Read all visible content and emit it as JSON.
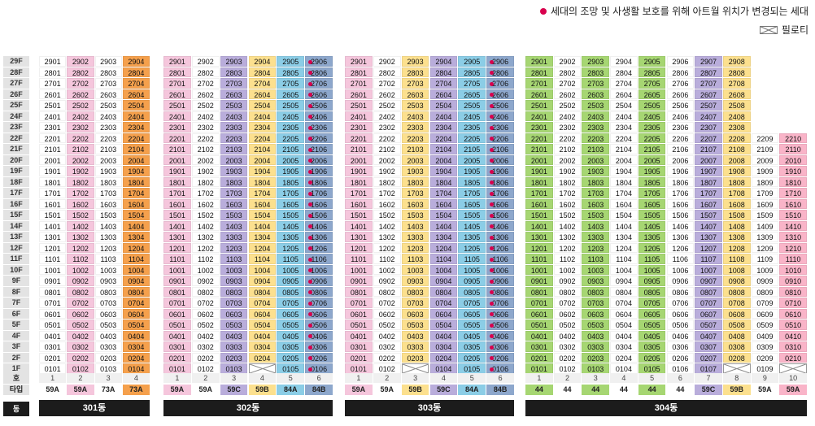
{
  "legend": {
    "dot_text": "세대의 조망 및 사생활 보호를 위해 아트월 위치가 변경되는 세대",
    "piloti_text": "필로티"
  },
  "labels": {
    "ho": "호",
    "type": "타입",
    "dong": "동"
  },
  "floors": [
    "29F",
    "28F",
    "27F",
    "26F",
    "25F",
    "24F",
    "23F",
    "22F",
    "21F",
    "20F",
    "19F",
    "18F",
    "17F",
    "16F",
    "15F",
    "14F",
    "13F",
    "12F",
    "11F",
    "10F",
    "9F",
    "8F",
    "7F",
    "6F",
    "5F",
    "4F",
    "3F",
    "2F",
    "1F"
  ],
  "colors": {
    "w": "#ffffff",
    "p": "#f5c6dc",
    "o": "#f5a04c",
    "v": "#b9addb",
    "y": "#fce08e",
    "b": "#8bcde6",
    "s": "#8da7cc",
    "g": "#a6d672",
    "r": "#f9b4c8",
    "dot": "#d8004d"
  },
  "buildings": [
    {
      "name": "301동",
      "columns": [
        {
          "ho": "1",
          "type": "59A",
          "color": "w",
          "dot": false,
          "top": 29,
          "piloti": []
        },
        {
          "ho": "2",
          "type": "59A",
          "color": "p",
          "dot": false,
          "top": 29,
          "piloti": []
        },
        {
          "ho": "3",
          "type": "73A",
          "color": "w",
          "dot": false,
          "top": 29,
          "piloti": []
        },
        {
          "ho": "4",
          "type": "73A",
          "color": "o",
          "dot": false,
          "top": 29,
          "piloti": []
        }
      ]
    },
    {
      "name": "302동",
      "columns": [
        {
          "ho": "1",
          "type": "59A",
          "color": "p",
          "dot": false,
          "top": 29,
          "piloti": []
        },
        {
          "ho": "2",
          "type": "59A",
          "color": "w",
          "dot": false,
          "top": 29,
          "piloti": []
        },
        {
          "ho": "3",
          "type": "59C",
          "color": "v",
          "dot": false,
          "top": 29,
          "piloti": []
        },
        {
          "ho": "4",
          "type": "59B",
          "color": "y",
          "dot": false,
          "top": 29,
          "piloti": [
            1
          ]
        },
        {
          "ho": "5",
          "type": "84A",
          "color": "b",
          "dot": false,
          "top": 29,
          "piloti": []
        },
        {
          "ho": "6",
          "type": "84B",
          "color": "s",
          "dot": true,
          "top": 29,
          "piloti": []
        }
      ]
    },
    {
      "name": "303동",
      "columns": [
        {
          "ho": "1",
          "type": "59A",
          "color": "p",
          "dot": false,
          "top": 29,
          "piloti": []
        },
        {
          "ho": "2",
          "type": "59A",
          "color": "w",
          "dot": false,
          "top": 29,
          "piloti": []
        },
        {
          "ho": "3",
          "type": "59B",
          "color": "y",
          "dot": false,
          "top": 29,
          "piloti": [
            1
          ]
        },
        {
          "ho": "4",
          "type": "59C",
          "color": "v",
          "dot": false,
          "top": 29,
          "piloti": []
        },
        {
          "ho": "5",
          "type": "84A",
          "color": "b",
          "dot": false,
          "top": 29,
          "piloti": []
        },
        {
          "ho": "6",
          "type": "84B",
          "color": "s",
          "dot": true,
          "top": 29,
          "piloti": []
        }
      ]
    },
    {
      "name": "304동",
      "columns": [
        {
          "ho": "1",
          "type": "44",
          "color": "g",
          "dot": false,
          "top": 29,
          "piloti": []
        },
        {
          "ho": "2",
          "type": "44",
          "color": "w",
          "dot": false,
          "top": 29,
          "piloti": []
        },
        {
          "ho": "3",
          "type": "44",
          "color": "g",
          "dot": false,
          "top": 29,
          "piloti": []
        },
        {
          "ho": "4",
          "type": "44",
          "color": "w",
          "dot": false,
          "top": 29,
          "piloti": []
        },
        {
          "ho": "5",
          "type": "44",
          "color": "g",
          "dot": false,
          "top": 29,
          "piloti": []
        },
        {
          "ho": "6",
          "type": "44",
          "color": "w",
          "dot": false,
          "top": 29,
          "piloti": []
        },
        {
          "ho": "7",
          "type": "59C",
          "color": "v",
          "dot": false,
          "top": 29,
          "piloti": []
        },
        {
          "ho": "8",
          "type": "59B",
          "color": "y",
          "dot": false,
          "top": 29,
          "piloti": [
            1
          ]
        },
        {
          "ho": "9",
          "type": "59A",
          "color": "w",
          "dot": false,
          "top": 22,
          "piloti": []
        },
        {
          "ho": "10",
          "type": "59A",
          "color": "r",
          "dot": false,
          "top": 22,
          "piloti": [
            1
          ]
        }
      ]
    }
  ]
}
